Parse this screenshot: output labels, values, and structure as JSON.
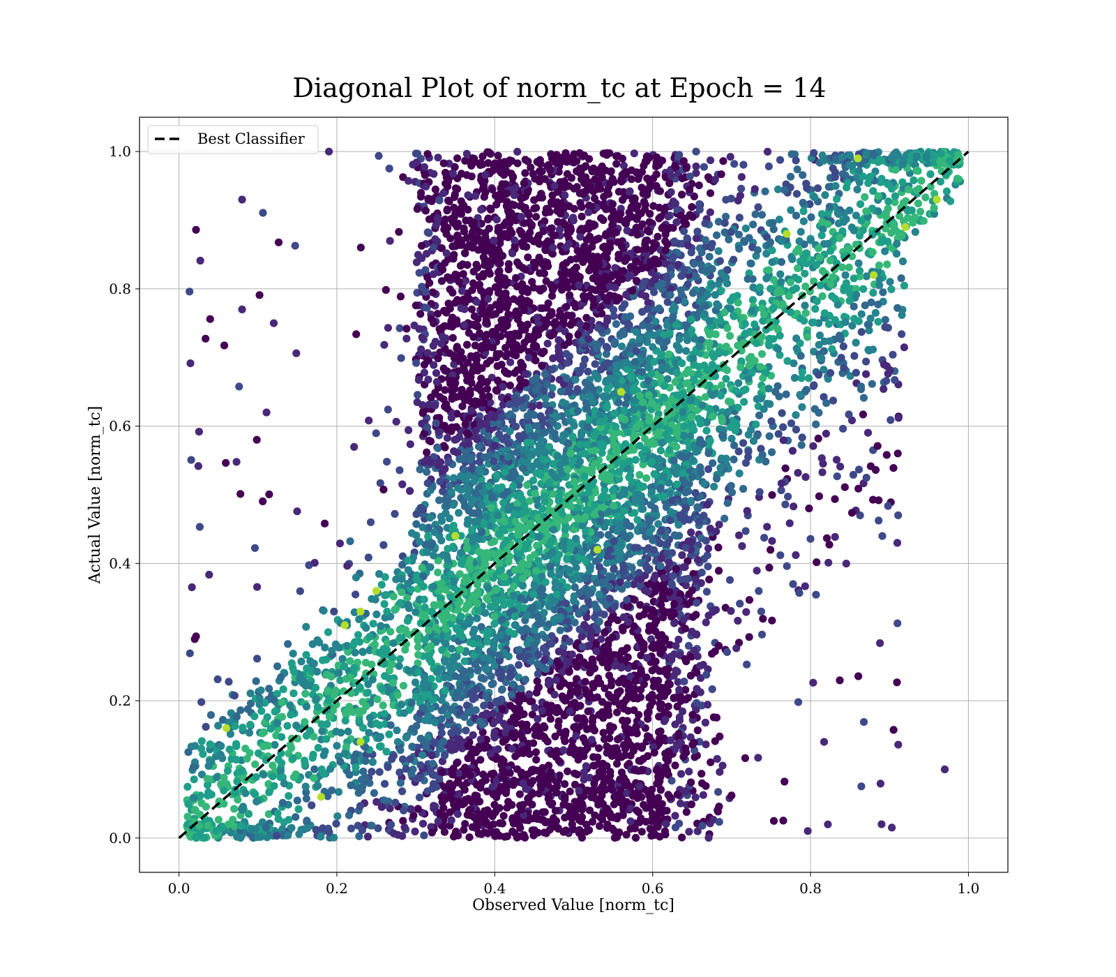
{
  "chart_data": {
    "type": "scatter",
    "title": "Diagonal Plot of norm_tc at Epoch = 14",
    "xlabel": "Observed Value [norm_tc]",
    "ylabel": "Actual Value [norm_tc]",
    "xlim": [
      -0.05,
      1.05
    ],
    "ylim": [
      -0.05,
      1.05
    ],
    "xticks": [
      0.0,
      0.2,
      0.4,
      0.6,
      0.8,
      1.0
    ],
    "yticks": [
      0.0,
      0.2,
      0.4,
      0.6,
      0.8,
      1.0
    ],
    "xtick_labels": [
      "0.0",
      "0.2",
      "0.4",
      "0.6",
      "0.8",
      "1.0"
    ],
    "ytick_labels": [
      "0.0",
      "0.2",
      "0.4",
      "0.6",
      "0.8",
      "1.0"
    ],
    "grid": true,
    "colormap": "viridis",
    "point_colors": [
      "#440154",
      "#482878",
      "#3e4989",
      "#31688e",
      "#26828e",
      "#1f9e89",
      "#35b779",
      "#6ece58",
      "#b5de2b",
      "#fde725"
    ],
    "legend": {
      "location": "upper-left",
      "entries": [
        {
          "label": "Best Classifier",
          "style": "dashed",
          "color": "#000000"
        }
      ]
    },
    "reference_line": {
      "name": "Best Classifier",
      "x": [
        0.0,
        1.0
      ],
      "y": [
        0.0,
        1.0
      ],
      "style": "dashed",
      "color": "#000000"
    },
    "scatter_summary": {
      "description_regions": [
        {
          "x_range": [
            0.0,
            1.0
          ],
          "y_range": [
            0.0,
            1.0
          ]
        }
      ],
      "highlight_points": [
        {
          "x": 0.35,
          "y": 0.44
        },
        {
          "x": 0.21,
          "y": 0.31
        },
        {
          "x": 0.23,
          "y": 0.33
        },
        {
          "x": 0.25,
          "y": 0.36
        },
        {
          "x": 0.56,
          "y": 0.65
        },
        {
          "x": 0.88,
          "y": 0.82
        },
        {
          "x": 0.86,
          "y": 0.99
        },
        {
          "x": 0.96,
          "y": 0.93
        },
        {
          "x": 0.77,
          "y": 0.88
        },
        {
          "x": 0.92,
          "y": 0.89
        },
        {
          "x": 0.06,
          "y": 0.16
        },
        {
          "x": 0.23,
          "y": 0.14
        },
        {
          "x": 0.18,
          "y": 0.06
        },
        {
          "x": 0.53,
          "y": 0.42
        },
        {
          "x": 0.91,
          "y": 0.43
        },
        {
          "x": 0.97,
          "y": 0.1
        },
        {
          "x": 0.89,
          "y": 0.02
        },
        {
          "x": 0.08,
          "y": 0.93
        },
        {
          "x": 0.19,
          "y": 1.0
        },
        {
          "x": 0.08,
          "y": 0.77
        }
      ]
    }
  }
}
